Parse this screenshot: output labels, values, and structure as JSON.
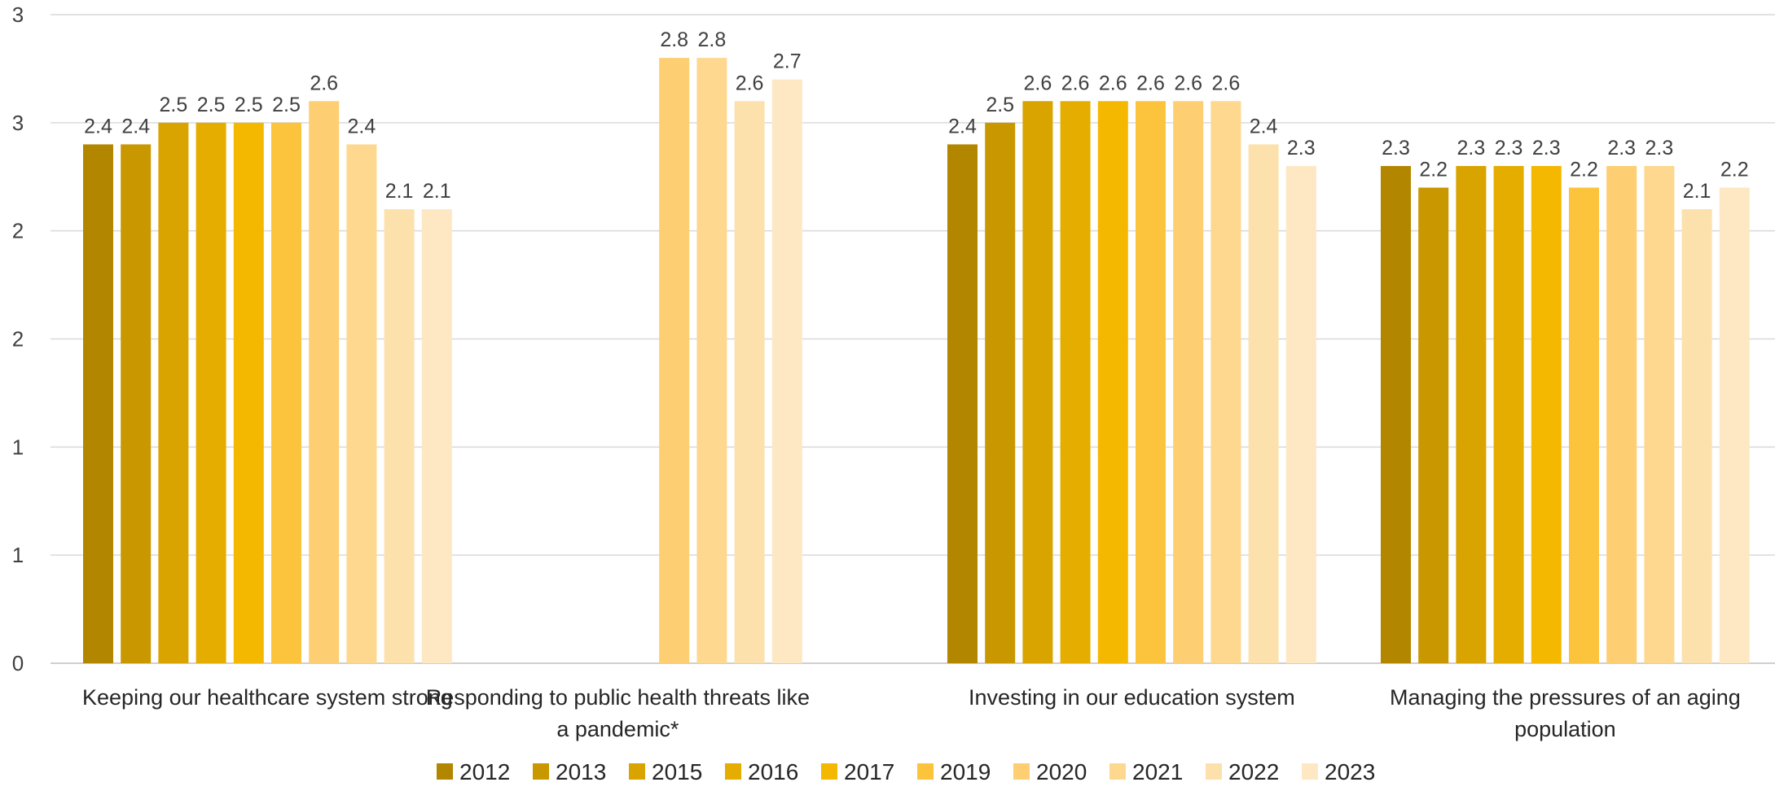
{
  "chart_data": {
    "type": "bar",
    "title": "",
    "xlabel": "",
    "ylabel": "",
    "ylim": [
      0,
      3
    ],
    "y_ticks": [
      0,
      0.5,
      1,
      1.5,
      2,
      2.5,
      3
    ],
    "y_tick_labels": [
      "0",
      "1",
      "1",
      "2",
      "2",
      "3",
      "3"
    ],
    "grid": true,
    "legend_position": "bottom",
    "categories": [
      [
        "Keeping our healthcare system strong"
      ],
      [
        "Responding to public health threats like",
        "a pandemic*"
      ],
      [
        "Investing in our education system"
      ],
      [
        "Managing the pressures of an aging",
        "population"
      ]
    ],
    "series": [
      {
        "name": "2012",
        "color": "#b38600",
        "values": [
          2.4,
          null,
          2.4,
          2.3
        ],
        "labels": [
          "2.4",
          null,
          "2.4",
          "2.3"
        ]
      },
      {
        "name": "2013",
        "color": "#c99700",
        "values": [
          2.4,
          null,
          2.5,
          2.2
        ],
        "labels": [
          "2.4",
          null,
          "2.5",
          "2.2"
        ]
      },
      {
        "name": "2015",
        "color": "#d9a300",
        "values": [
          2.5,
          null,
          2.6,
          2.3
        ],
        "labels": [
          "2.5",
          null,
          "2.6",
          "2.3"
        ]
      },
      {
        "name": "2016",
        "color": "#e5ad00",
        "values": [
          2.5,
          null,
          2.6,
          2.3
        ],
        "labels": [
          "2.5",
          null,
          "2.6",
          "2.3"
        ]
      },
      {
        "name": "2017",
        "color": "#f5b800",
        "values": [
          2.5,
          null,
          2.6,
          2.3
        ],
        "labels": [
          "2.5",
          null,
          "2.6",
          "2.3"
        ]
      },
      {
        "name": "2019",
        "color": "#fcc43d",
        "values": [
          2.5,
          null,
          2.6,
          2.2
        ],
        "labels": [
          "2.5",
          null,
          "2.6",
          "2.2"
        ]
      },
      {
        "name": "2020",
        "color": "#fdcf72",
        "values": [
          2.6,
          2.8,
          2.6,
          2.3
        ],
        "labels": [
          "2.6",
          "2.8",
          "2.6",
          "2.3"
        ]
      },
      {
        "name": "2021",
        "color": "#fdd88e",
        "values": [
          2.4,
          2.8,
          2.6,
          2.3
        ],
        "labels": [
          "2.4",
          "2.8",
          "2.6",
          "2.3"
        ]
      },
      {
        "name": "2022",
        "color": "#fde1ad",
        "values": [
          2.1,
          2.6,
          2.4,
          2.1
        ],
        "labels": [
          "2.1",
          "2.6",
          "2.4",
          "2.1"
        ]
      },
      {
        "name": "2023",
        "color": "#fee8c4",
        "values": [
          2.1,
          2.7,
          2.3,
          2.2
        ],
        "labels": [
          "2.1",
          "2.7",
          "2.3",
          "2.2"
        ]
      }
    ]
  }
}
